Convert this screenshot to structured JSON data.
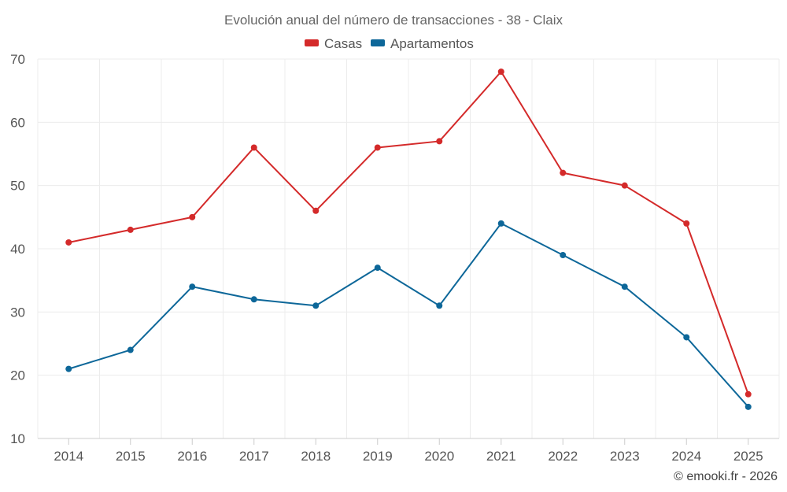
{
  "chart_data": {
    "type": "line",
    "title": "Evolución anual del número de transacciones - 38 - Claix",
    "categories": [
      "2014",
      "2015",
      "2016",
      "2017",
      "2018",
      "2019",
      "2020",
      "2021",
      "2022",
      "2023",
      "2024",
      "2025"
    ],
    "series": [
      {
        "name": "Casas",
        "color": "#d42a2a",
        "values": [
          41,
          43,
          45,
          56,
          46,
          56,
          57,
          68,
          52,
          50,
          44,
          17
        ]
      },
      {
        "name": "Apartamentos",
        "color": "#0d6799",
        "values": [
          21,
          24,
          34,
          32,
          31,
          37,
          31,
          44,
          39,
          34,
          26,
          15
        ]
      }
    ],
    "yticks": [
      "10",
      "20",
      "30",
      "40",
      "50",
      "60",
      "70"
    ],
    "ylim": [
      10,
      70
    ],
    "xlabel": "",
    "ylabel": "",
    "grid": true,
    "legend_position": "top-center"
  },
  "credit": "© emooki.fr - 2026"
}
